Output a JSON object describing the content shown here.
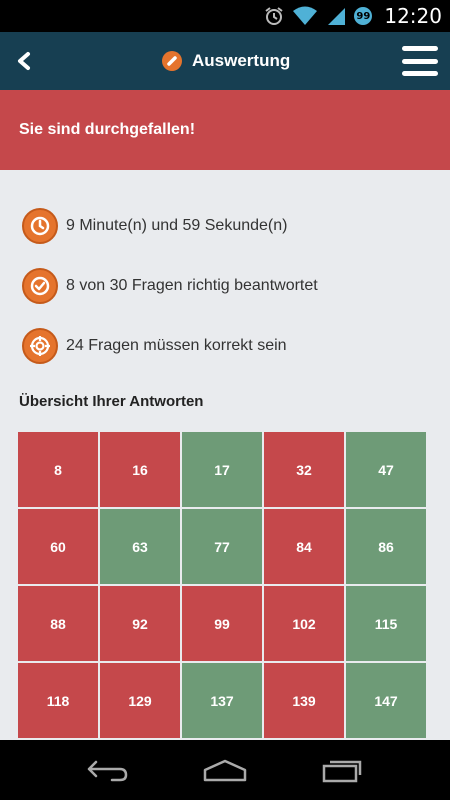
{
  "status_bar": {
    "time": "12:20",
    "badge": "99"
  },
  "header": {
    "title": "Auswertung"
  },
  "result": {
    "message": "Sie sind durchgefallen!"
  },
  "stats": [
    {
      "icon": "clock-icon",
      "text": "9 Minute(n) und 59 Sekunde(n)"
    },
    {
      "icon": "checkmark-icon",
      "text": "8 von 30 Fragen richtig beantwortet"
    },
    {
      "icon": "target-icon",
      "text": "24 Fragen müssen korrekt sein"
    }
  ],
  "overview": {
    "title": "Übersicht Ihrer Antworten",
    "answers": [
      {
        "number": "8",
        "status": "wrong"
      },
      {
        "number": "16",
        "status": "wrong"
      },
      {
        "number": "17",
        "status": "correct"
      },
      {
        "number": "32",
        "status": "wrong"
      },
      {
        "number": "47",
        "status": "correct"
      },
      {
        "number": "60",
        "status": "wrong"
      },
      {
        "number": "63",
        "status": "correct"
      },
      {
        "number": "77",
        "status": "correct"
      },
      {
        "number": "84",
        "status": "wrong"
      },
      {
        "number": "86",
        "status": "correct"
      },
      {
        "number": "88",
        "status": "wrong"
      },
      {
        "number": "92",
        "status": "wrong"
      },
      {
        "number": "99",
        "status": "wrong"
      },
      {
        "number": "102",
        "status": "wrong"
      },
      {
        "number": "115",
        "status": "correct"
      },
      {
        "number": "118",
        "status": "wrong"
      },
      {
        "number": "129",
        "status": "wrong"
      },
      {
        "number": "137",
        "status": "correct"
      },
      {
        "number": "139",
        "status": "wrong"
      },
      {
        "number": "147",
        "status": "correct"
      }
    ]
  },
  "colors": {
    "wrong": "#c5484b",
    "correct": "#6e9b77",
    "header": "#173f52",
    "accent": "#e5742d"
  }
}
